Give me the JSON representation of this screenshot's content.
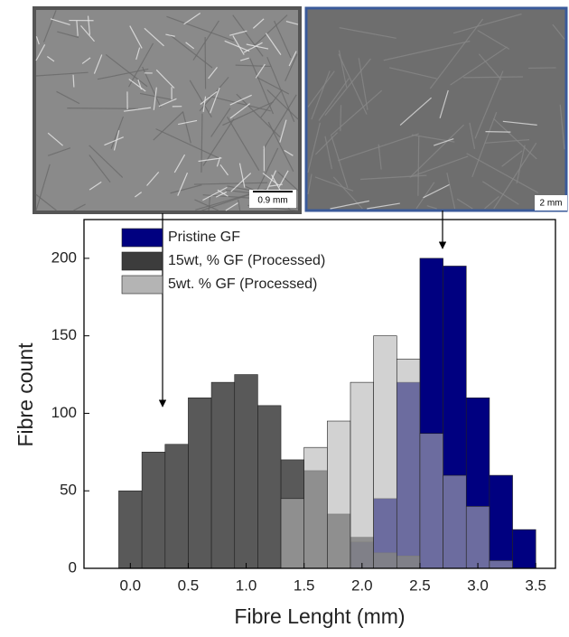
{
  "chart_data": {
    "type": "histogram",
    "x_label": "Fibre Lenght (mm)",
    "y_label": "Fibre count",
    "bins": [
      -0.1,
      0.1,
      0.3,
      0.5,
      0.7,
      0.9,
      1.1,
      1.3,
      1.5,
      1.7,
      1.9,
      2.1,
      2.3,
      2.5,
      2.7,
      2.9,
      3.1,
      3.3,
      3.5
    ],
    "series": [
      {
        "name": "Pristine GF",
        "color": "#000080",
        "values": [
          0,
          0,
          0,
          0,
          0,
          0,
          0,
          0,
          0,
          0,
          17,
          45,
          120,
          200,
          195,
          110,
          60,
          25
        ]
      },
      {
        "name": "15wt, % GF (Processed)",
        "color": "#3c3c3c",
        "values": [
          50,
          75,
          80,
          110,
          120,
          125,
          105,
          70,
          63,
          35,
          20,
          10,
          8,
          0,
          0,
          0,
          0,
          0
        ]
      },
      {
        "name": "5wt. % GF (Processed)",
        "color": "#b4b4b4",
        "values": [
          0,
          0,
          0,
          0,
          0,
          0,
          0,
          45,
          78,
          95,
          120,
          150,
          135,
          87,
          60,
          40,
          5,
          0
        ]
      }
    ],
    "xlim": [
      -0.4,
      3.67
    ],
    "ylim": [
      0,
      225
    ],
    "xticks": [
      {
        "value": 0,
        "label": "0.0"
      },
      0.5,
      {
        "value": 1,
        "label": "1.0"
      },
      1.5,
      {
        "value": 2,
        "label": "2.0"
      },
      2.5,
      {
        "value": 3,
        "label": "3.0"
      },
      3.5
    ],
    "yticks": [
      0,
      50,
      100,
      150,
      200
    ],
    "legend": "top-left"
  },
  "micrographs": [
    {
      "scale_label": "0.9 mm"
    },
    {
      "scale_label": "2 mm"
    }
  ]
}
